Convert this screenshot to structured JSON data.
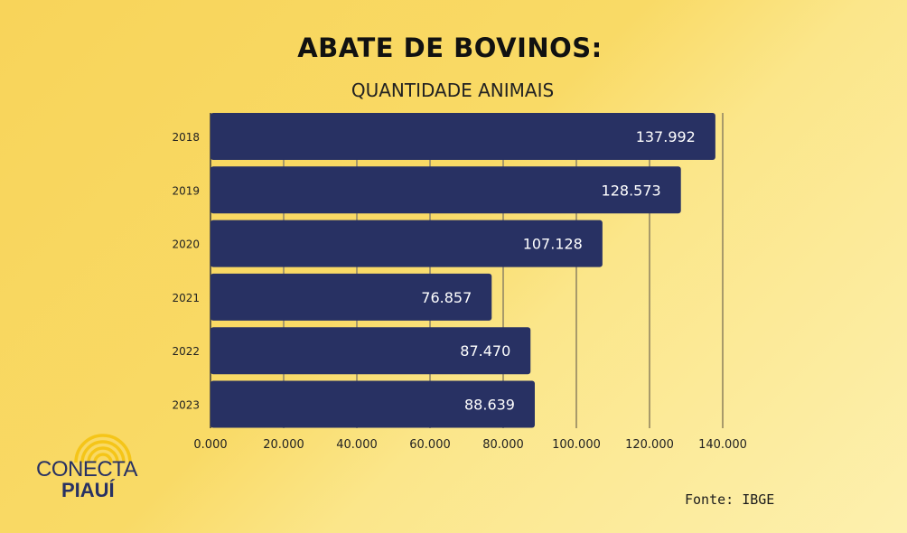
{
  "chart_data": {
    "type": "bar",
    "orientation": "horizontal",
    "title": "ABATE DE BOVINOS:",
    "subtitle": "QUANTIDADE ANIMAIS",
    "categories": [
      "2018",
      "2019",
      "2020",
      "2021",
      "2022",
      "2023"
    ],
    "values": [
      137992,
      128573,
      107128,
      76857,
      87470,
      88639
    ],
    "value_labels": [
      "137.992",
      "128.573",
      "107.128",
      "76.857",
      "87.470",
      "88.639"
    ],
    "xlim": [
      0,
      140000
    ],
    "xticks": [
      0,
      20000,
      40000,
      60000,
      80000,
      100000,
      120000,
      140000
    ],
    "xtick_labels": [
      "0.000",
      "20.000",
      "40.000",
      "60.000",
      "80.000",
      "100.000",
      "120.000",
      "140.000"
    ],
    "grid": true,
    "bar_color": "#283163"
  },
  "source": "Fonte: IBGE",
  "logo": {
    "line1": "CONECTA",
    "line2": "PIAUÍ"
  }
}
